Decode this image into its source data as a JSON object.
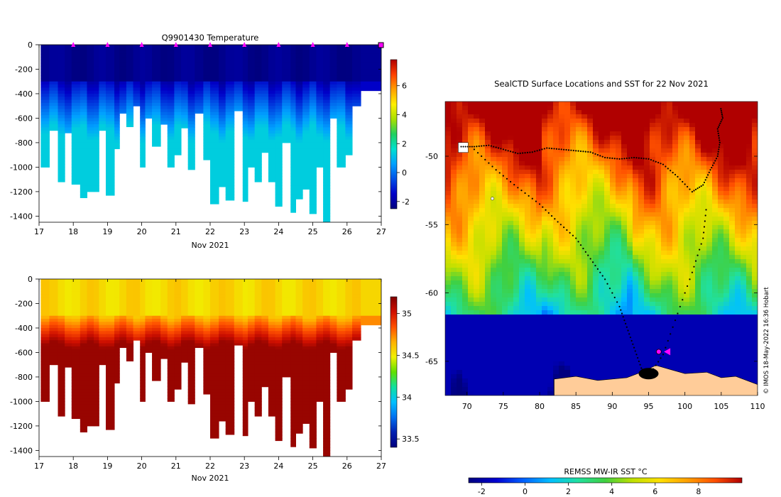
{
  "colors": {
    "temp_scale": [
      "#00007f",
      "#0000c8",
      "#0050e6",
      "#00a0ff",
      "#00e0d0",
      "#20d060",
      "#a8e000",
      "#fff000",
      "#ffa000",
      "#ff4000",
      "#b00000"
    ],
    "sal_scale": [
      "#00007f",
      "#0020b0",
      "#0070f0",
      "#00c0ff",
      "#10e0a0",
      "#60e000",
      "#f0f000",
      "#ffb000",
      "#ff5000",
      "#d01000",
      "#800000"
    ],
    "sst_scale": [
      "#00007f",
      "#0000d0",
      "#0060ff",
      "#00c0ff",
      "#20e0a0",
      "#40d040",
      "#c0e000",
      "#ffe000",
      "#ffa000",
      "#ff5000",
      "#b00000"
    ],
    "land": "#ffcc99",
    "track": "#000000",
    "marker": "#ff00ff"
  },
  "chart_data": [
    {
      "type": "heatmap",
      "title": "Q9901430  Temperature",
      "variable": "temperature",
      "xlabel": "Nov 2021",
      "ylabel": "",
      "x_ticks": [
        "17",
        "18",
        "19",
        "20",
        "21",
        "22",
        "23",
        "24",
        "25",
        "26",
        "27"
      ],
      "xlim": [
        17,
        27
      ],
      "y_ticks": [
        "0",
        "-200",
        "-400",
        "-600",
        "-800",
        "-1000",
        "-1200",
        "-1400"
      ],
      "ylim": [
        -1450,
        0
      ],
      "colorbar_ticks": [
        "-2",
        "0",
        "2",
        "4",
        "6"
      ],
      "colorbar_range": [
        -2.5,
        7.8
      ],
      "profiles_day": [
        17.05,
        17.3,
        17.55,
        17.75,
        17.95,
        18.2,
        18.4,
        18.6,
        18.75,
        18.95,
        19.2,
        19.35,
        19.55,
        19.75,
        19.95,
        20.1,
        20.3,
        20.55,
        20.75,
        20.95,
        21.15,
        21.35,
        21.55,
        21.8,
        22.0,
        22.25,
        22.45,
        22.7,
        22.95,
        23.1,
        23.3,
        23.5,
        23.7,
        23.9,
        24.1,
        24.35,
        24.5,
        24.7,
        24.9,
        25.1,
        25.3,
        25.5,
        25.7,
        25.95,
        26.15
      ],
      "profiles_max_depth": [
        -1000,
        -700,
        -1120,
        -720,
        -1140,
        -1250,
        -1200,
        -1200,
        -700,
        -1230,
        -850,
        -560,
        -670,
        -500,
        -1000,
        -600,
        -830,
        -650,
        -1000,
        -900,
        -680,
        -1020,
        -560,
        -940,
        -1300,
        -1160,
        -1270,
        -540,
        -1280,
        -1000,
        -1120,
        -880,
        -1120,
        -1320,
        -800,
        -1370,
        -1260,
        -1180,
        -1380,
        -1000,
        -1450,
        -600,
        -1000,
        -900,
        -500
      ],
      "sample_markers_day": [
        18,
        19,
        20,
        21,
        22,
        23,
        24,
        25,
        26,
        26.98
      ]
    },
    {
      "type": "heatmap",
      "title": "",
      "variable": "salinity",
      "xlabel": "Nov 2021",
      "ylabel": "",
      "x_ticks": [
        "17",
        "18",
        "19",
        "20",
        "21",
        "22",
        "23",
        "24",
        "25",
        "26",
        "27"
      ],
      "xlim": [
        17,
        27
      ],
      "y_ticks": [
        "0",
        "-200",
        "-400",
        "-600",
        "-800",
        "-1000",
        "-1200",
        "-1400"
      ],
      "ylim": [
        -1450,
        0
      ],
      "colorbar_ticks": [
        "33.5",
        "34",
        "34.5",
        "35"
      ],
      "colorbar_range": [
        33.4,
        35.2
      ]
    },
    {
      "type": "heatmap",
      "title": "SealCTD Surface Locations and SST for 22 Nov 2021",
      "variable": "sea surface temperature map",
      "xlabel": "",
      "ylabel": "",
      "x_ticks": [
        "70",
        "75",
        "80",
        "85",
        "90",
        "95",
        "100",
        "105",
        "110"
      ],
      "xlim": [
        67,
        110
      ],
      "y_ticks": [
        "-50",
        "-55",
        "-60",
        "-65"
      ],
      "ylim": [
        -67.5,
        -46
      ],
      "colorbar_label": "REMSS MW-IR SST °C",
      "colorbar_ticks": [
        "-2",
        "0",
        "2",
        "4",
        "6",
        "8"
      ],
      "colorbar_range": [
        -2.6,
        10
      ],
      "track_lonlat": [
        [
          69.2,
          -49.3
        ],
        [
          71,
          -49.3
        ],
        [
          73,
          -49.2
        ],
        [
          75,
          -49.5
        ],
        [
          77,
          -49.8
        ],
        [
          79,
          -49.7
        ],
        [
          81,
          -49.4
        ],
        [
          83,
          -49.5
        ],
        [
          85,
          -49.6
        ],
        [
          87,
          -49.7
        ],
        [
          89,
          -50.1
        ],
        [
          91,
          -50.2
        ],
        [
          93,
          -50.1
        ],
        [
          95,
          -50.2
        ],
        [
          97,
          -50.6
        ],
        [
          99,
          -51.5
        ],
        [
          101,
          -52.6
        ],
        [
          102.5,
          -52.1
        ],
        [
          103.5,
          -51
        ],
        [
          104.5,
          -50
        ],
        [
          104.8,
          -49
        ],
        [
          104.5,
          -48
        ],
        [
          105.2,
          -47.2
        ],
        [
          104.9,
          -46.4
        ]
      ],
      "track2_lonlat": [
        [
          71,
          -49.5
        ],
        [
          74,
          -51
        ],
        [
          77,
          -52.3
        ],
        [
          80,
          -53.5
        ],
        [
          82.5,
          -54.8
        ],
        [
          85,
          -56
        ],
        [
          87,
          -57.5
        ],
        [
          89,
          -59
        ],
        [
          91,
          -61
        ],
        [
          92,
          -62.5
        ],
        [
          93,
          -64
        ],
        [
          94,
          -65.5
        ],
        [
          95,
          -66.1
        ],
        [
          97,
          -64.5
        ],
        [
          99,
          -61.5
        ],
        [
          101,
          -58.5
        ],
        [
          102.5,
          -56
        ],
        [
          103,
          -53.5
        ]
      ],
      "current_position_lonlat": [
        96.4,
        -64.3
      ],
      "arrow_position_lonlat": [
        97.6,
        -64.3
      ]
    }
  ],
  "watermark": "© IMOS 18-May-2022 16:36 Hobart"
}
